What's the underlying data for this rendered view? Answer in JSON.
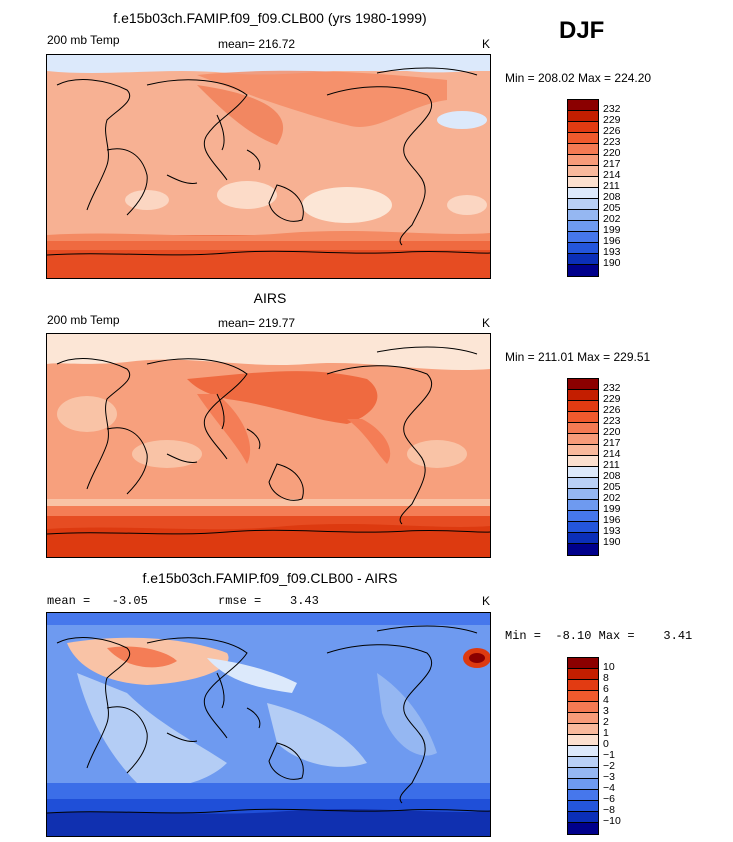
{
  "season": "DJF",
  "panels": [
    {
      "title": "f.e15b03ch.FAMIP.f09_f09.CLB00 (yrs 1980-1999)",
      "variable": "200 mb Temp",
      "stat_text": "mean= 216.72",
      "units": "K",
      "minmax": "Min = 208.02 Max = 224.20",
      "levels": [
        "232",
        "229",
        "226",
        "223",
        "220",
        "217",
        "214",
        "211",
        "208",
        "205",
        "202",
        "199",
        "196",
        "193",
        "190"
      ]
    },
    {
      "title": "AIRS",
      "variable": "200 mb Temp",
      "stat_text": "mean= 219.77",
      "units": "K",
      "minmax": "Min = 211.01 Max = 229.51",
      "levels": [
        "232",
        "229",
        "226",
        "223",
        "220",
        "217",
        "214",
        "211",
        "208",
        "205",
        "202",
        "199",
        "196",
        "193",
        "190"
      ]
    },
    {
      "title": "f.e15b03ch.FAMIP.f09_f09.CLB00 - AIRS",
      "mean_text": "mean =   -3.05",
      "rmse_text": "rmse =    3.43",
      "units": "K",
      "minmax": "Min =  -8.10 Max =    3.41",
      "levels": [
        "10",
        "8",
        "6",
        "4",
        "3",
        "2",
        "1",
        "0",
        "−1",
        "−2",
        "−3",
        "−4",
        "−6",
        "−8",
        "−10"
      ]
    }
  ],
  "palette": [
    "#8b0000",
    "#b31b00",
    "#dd3a10",
    "#ef5a2e",
    "#f47d56",
    "#f7a07d",
    "#f9c3a6",
    "#fce6d6",
    "#dce9fb",
    "#b4cdf5",
    "#8ab0f0",
    "#5f8ff0",
    "#3b6ee8",
    "#1f4fd8",
    "#1030b0",
    "#00008b"
  ],
  "colorbar_colors": [
    "#8b0000",
    "#c41e00",
    "#e23b12",
    "#f05a2d",
    "#f47a53",
    "#f79b79",
    "#f9b99c",
    "#fce0cf",
    "#dde9fb",
    "#b9d0f6",
    "#95b7f2",
    "#6e9af0",
    "#4677ec",
    "#2456dc",
    "#0b2fb8",
    "#00008b"
  ]
}
